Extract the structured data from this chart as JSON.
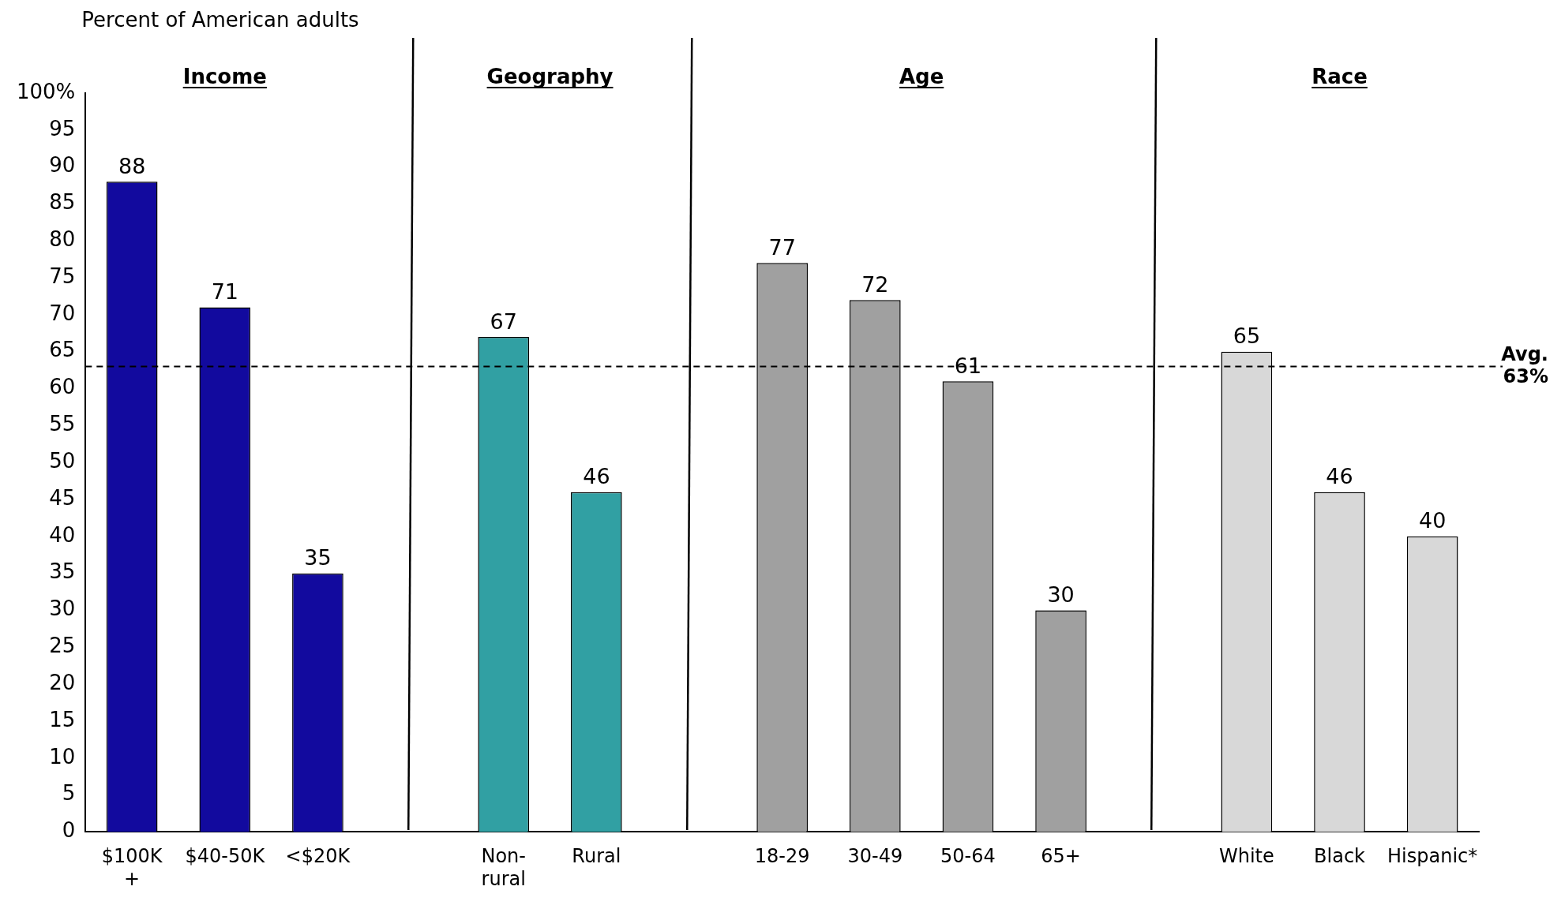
{
  "chart_data": {
    "type": "bar",
    "ylabel": "Percent of American adults",
    "categories": [
      "$100K +",
      "$40-50K",
      "<$20K",
      null,
      "Non-rural",
      "Rural",
      null,
      "18-29",
      "30-49",
      "50-64",
      "65+",
      null,
      "White",
      "Black",
      "Hispanic*"
    ],
    "values": [
      88,
      71,
      35,
      null,
      67,
      46,
      null,
      77,
      72,
      61,
      30,
      null,
      65,
      46,
      40
    ],
    "colors": [
      "#120a9e",
      "#120a9e",
      "#120a9e",
      "#ffffff",
      "#31a0a3",
      "#31a0a3",
      "#ffffff",
      "#a0a0a0",
      "#a0a0a0",
      "#a0a0a0",
      "#a0a0a0",
      "#ffffff",
      "#d8d8d8",
      "#d8d8d8",
      "#d8d8d8"
    ],
    "ylim": [
      0,
      100
    ],
    "yticks": [
      0,
      5,
      10,
      15,
      20,
      25,
      30,
      35,
      40,
      45,
      50,
      55,
      60,
      65,
      70,
      75,
      80,
      85,
      90,
      95,
      {
        "value": 100,
        "label": "100%"
      }
    ],
    "grid": false,
    "legend": false,
    "data_labels": true,
    "ref_lines": [
      {
        "axis": "y",
        "value": 63,
        "label": "Avg. 63%",
        "color": "#000000",
        "line_style": "dashed"
      }
    ],
    "annotations": [
      "Income",
      "Geography",
      "Age",
      "Race"
    ]
  }
}
